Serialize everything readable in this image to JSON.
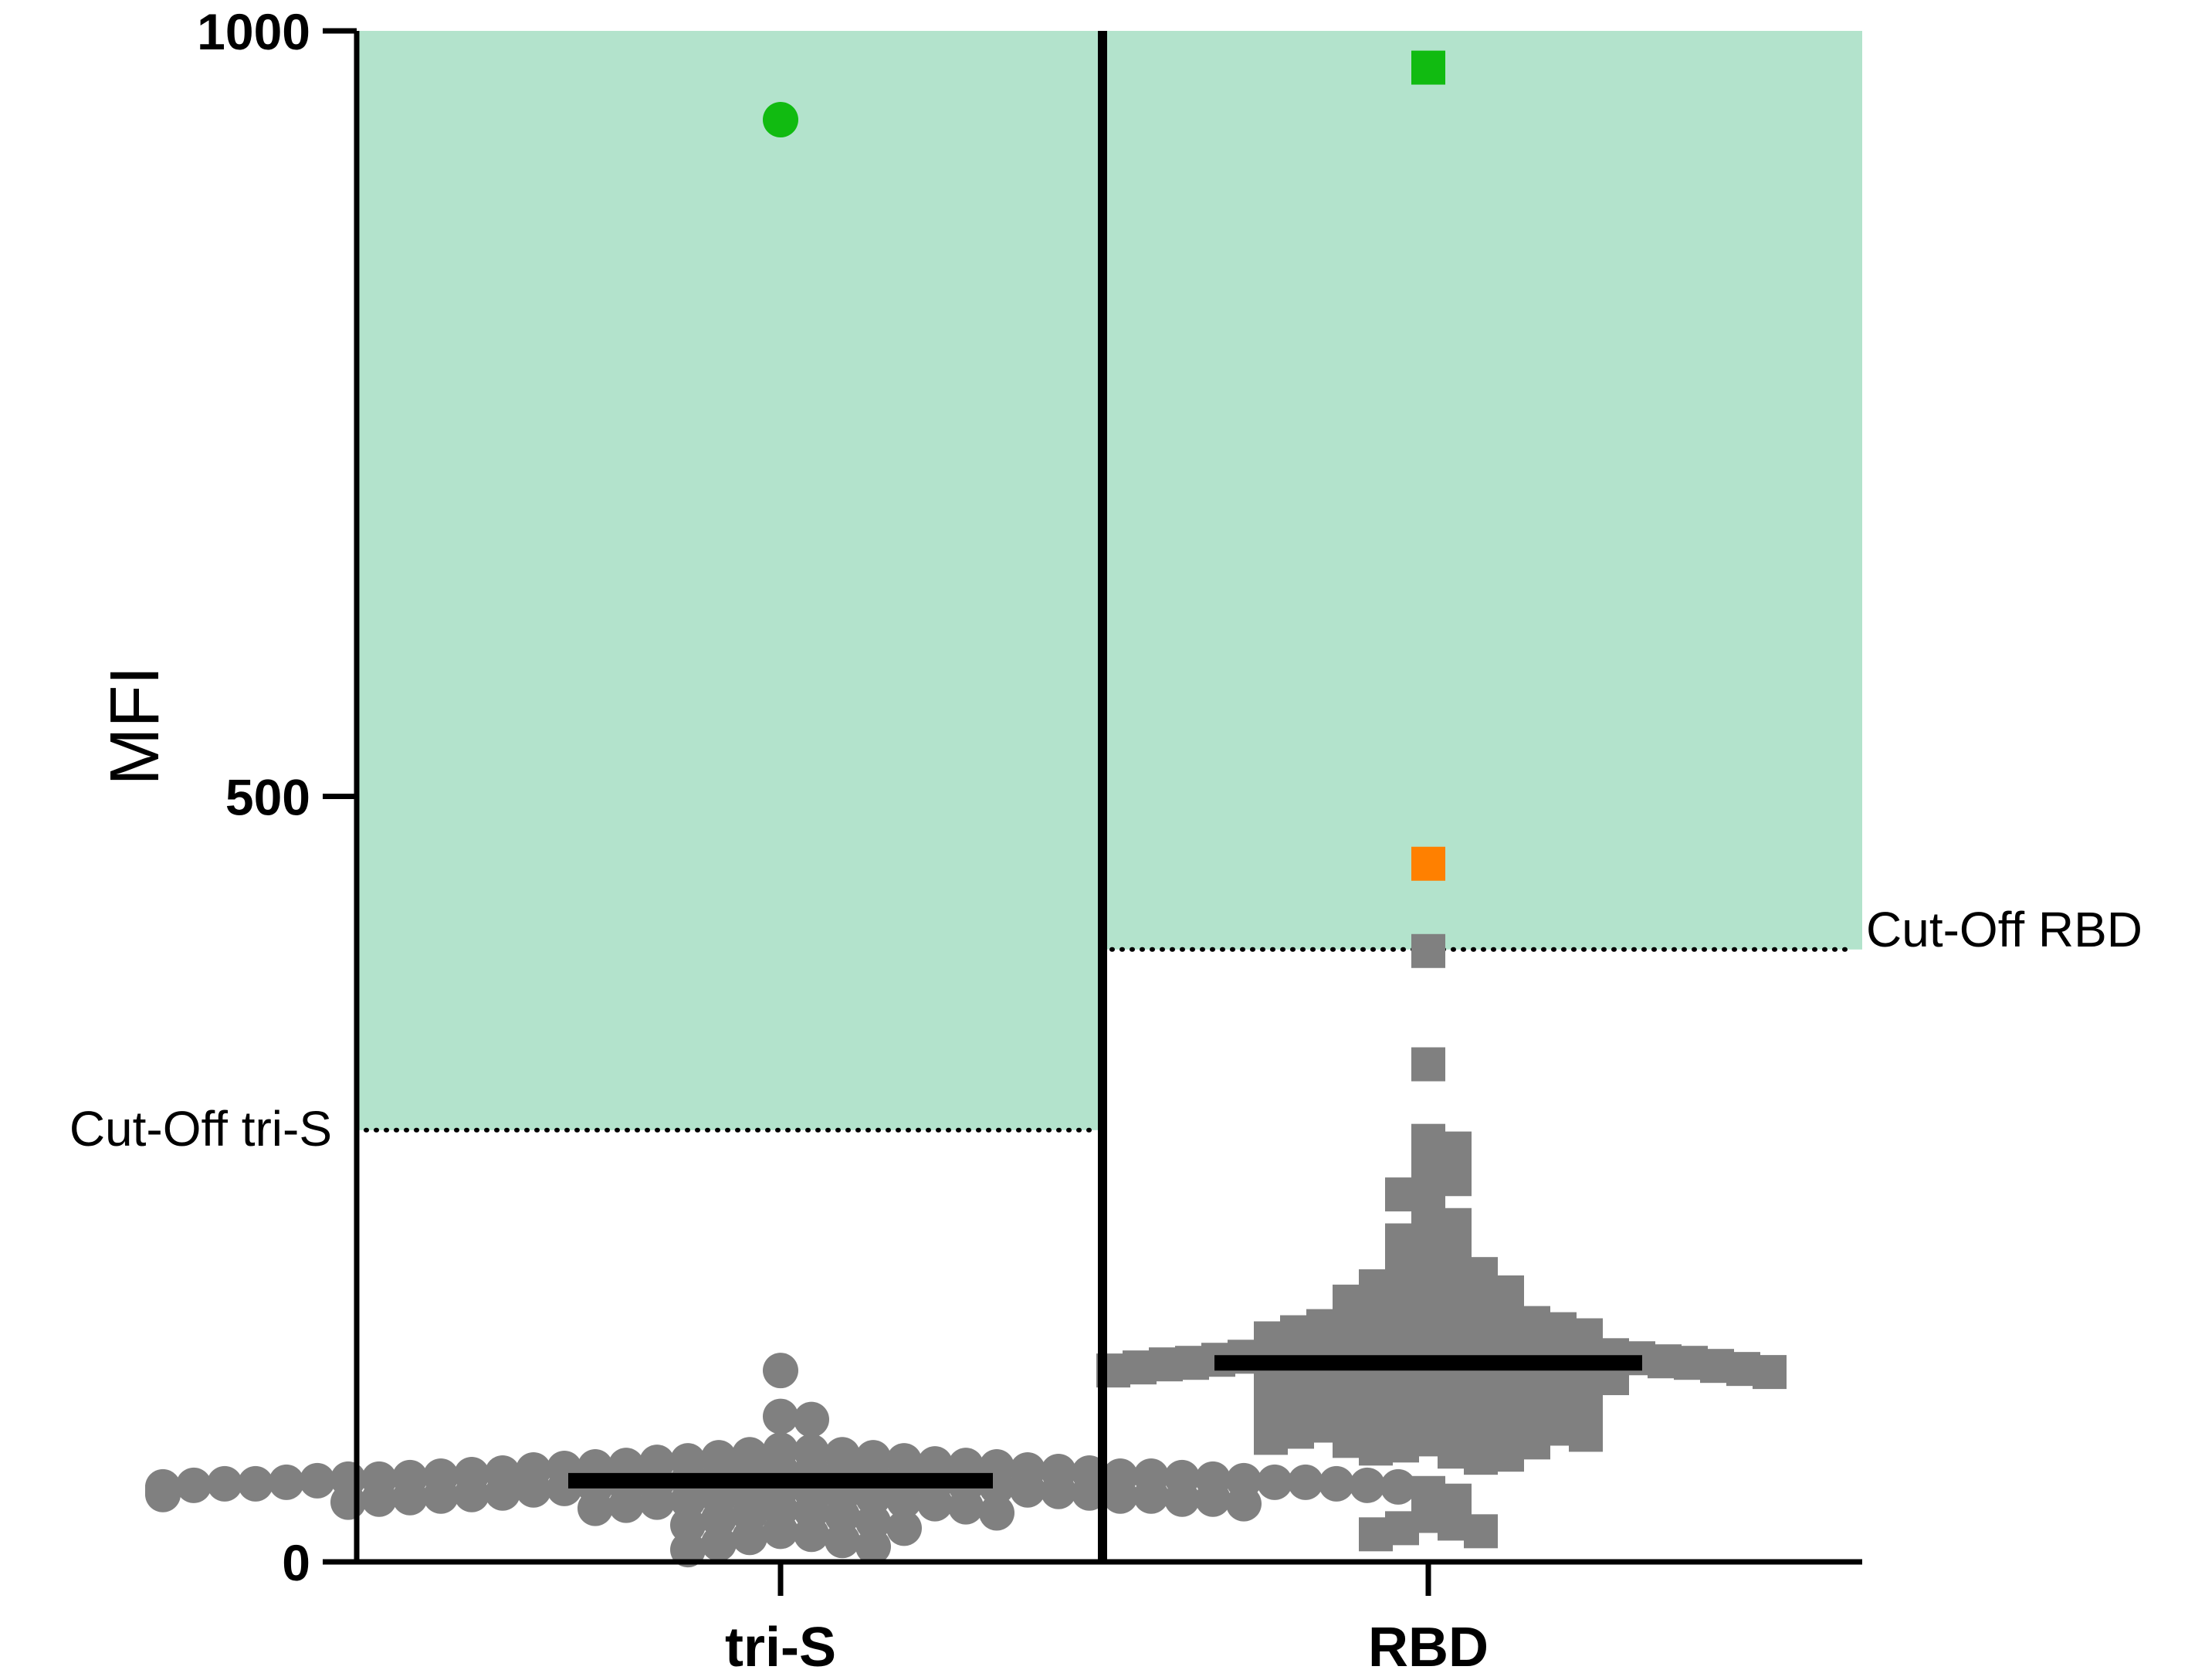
{
  "chart_data": {
    "type": "scatter",
    "subtype": "dot-plot",
    "ylabel": "MFI",
    "ylim": [
      0,
      1000
    ],
    "yticks": [
      "0",
      "500",
      "1000"
    ],
    "categories": [
      "tri-S",
      "RBD"
    ],
    "colors": {
      "positive_zone": "#b3e3cc",
      "negative_point": "#808080",
      "positive_green": "#11bb11",
      "positive_orange": "#ff8000",
      "median_line": "#000000"
    },
    "cutoffs": [
      {
        "category": "tri-S",
        "value": 282,
        "label": "Cut-Off tri-S"
      },
      {
        "category": "RBD",
        "value": 400,
        "label": "Cut-Off RBD"
      }
    ],
    "series": [
      {
        "category": "tri-S",
        "marker": "circle",
        "median": 53,
        "highlighted_points": [
          {
            "value": 942,
            "color": "green"
          }
        ],
        "points": [
          125,
          95,
          93,
          73,
          72,
          70,
          70,
          68,
          68,
          66,
          66,
          65,
          64,
          63,
          63,
          62,
          62,
          61,
          60,
          60,
          60,
          59,
          59,
          58,
          58,
          57,
          57,
          57,
          56,
          56,
          56,
          55,
          55,
          55,
          55,
          54,
          54,
          54,
          53,
          53,
          53,
          53,
          52,
          52,
          52,
          52,
          51,
          51,
          51,
          51,
          50,
          50,
          50,
          50,
          49,
          49,
          49,
          49,
          48,
          48,
          48,
          48,
          47,
          47,
          47,
          46,
          46,
          46,
          46,
          45,
          45,
          45,
          45,
          44,
          44,
          44,
          44,
          43,
          43,
          43,
          42,
          42,
          42,
          41,
          41,
          41,
          40,
          40,
          39,
          39,
          38,
          38,
          37,
          36,
          35,
          34,
          33,
          32,
          31,
          30,
          28,
          26,
          24,
          22,
          20,
          18,
          16,
          14,
          12,
          10,
          8
        ]
      },
      {
        "category": "RBD",
        "marker": "square",
        "median": 130,
        "highlighted_points": [
          {
            "value": 976,
            "color": "green"
          },
          {
            "value": 456,
            "color": "orange"
          }
        ],
        "points": [
          399,
          325,
          275,
          270,
          260,
          250,
          245,
          240,
          230,
          220,
          215,
          210,
          205,
          200,
          196,
          192,
          188,
          185,
          182,
          180,
          178,
          176,
          174,
          172,
          170,
          168,
          166,
          164,
          162,
          160,
          158,
          157,
          156,
          155,
          154,
          153,
          152,
          151,
          150,
          149,
          148,
          147,
          146,
          145,
          144,
          143,
          142,
          141,
          140,
          139,
          138,
          137,
          136,
          135,
          135,
          134,
          134,
          133,
          133,
          132,
          132,
          131,
          131,
          130,
          130,
          130,
          129,
          129,
          128,
          128,
          127,
          127,
          126,
          126,
          125,
          125,
          124,
          124,
          123,
          122,
          121,
          120,
          120,
          119,
          118,
          117,
          116,
          115,
          114,
          113,
          112,
          111,
          110,
          109,
          108,
          107,
          106,
          105,
          104,
          103,
          102,
          101,
          100,
          99,
          98,
          97,
          96,
          95,
          94,
          93,
          92,
          91,
          90,
          89,
          88,
          87,
          86,
          85,
          84,
          83,
          82,
          81,
          80,
          79,
          78,
          76,
          74,
          72,
          70,
          68,
          45,
          40,
          30,
          25,
          22,
          20,
          18
        ]
      }
    ]
  }
}
